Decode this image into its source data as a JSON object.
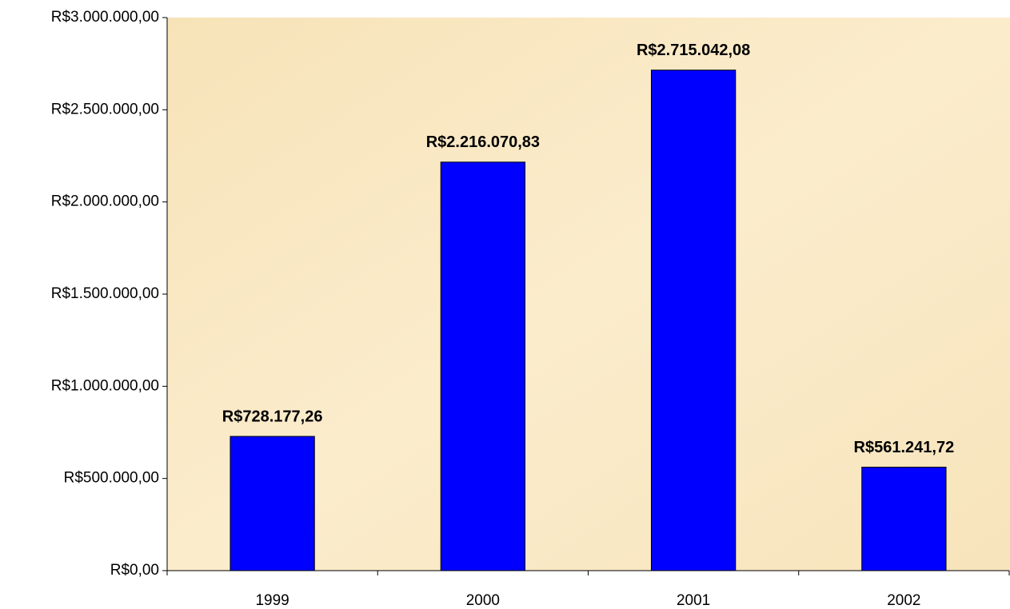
{
  "chart_data": {
    "type": "bar",
    "categories": [
      "1999",
      "2000",
      "2001",
      "2002"
    ],
    "values": [
      728177.26,
      2216070.83,
      2715042.08,
      561241.72
    ],
    "value_labels": [
      "R$728.177,26",
      "R$2.216.070,83",
      "R$2.715.042,08",
      "R$561.241,72"
    ],
    "color": "#0000ff",
    "ylim": [
      0,
      3000000
    ],
    "yticks": [
      {
        "value": 0,
        "label": "R$0,00"
      },
      {
        "value": 500000,
        "label": "R$500.000,00"
      },
      {
        "value": 1000000,
        "label": "R$1.000.000,00"
      },
      {
        "value": 1500000,
        "label": "R$1.500.000,00"
      },
      {
        "value": 2000000,
        "label": "R$2.000.000,00"
      },
      {
        "value": 2500000,
        "label": "R$2.500.000,00"
      },
      {
        "value": 3000000,
        "label": "R$3.000.000,00"
      }
    ],
    "grid": false
  }
}
